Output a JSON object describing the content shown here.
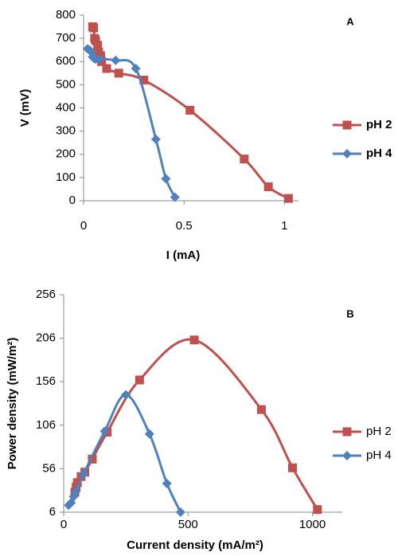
{
  "chart_data": [
    {
      "type": "line",
      "panel_label": "A",
      "x_label": "I (mA)",
      "y_label": "V (mV)",
      "xlim": [
        0,
        1.07
      ],
      "ylim": [
        0,
        800
      ],
      "xticks": [
        0,
        0.5,
        1
      ],
      "yticks": [
        0,
        100,
        200,
        300,
        400,
        500,
        600,
        700,
        800
      ],
      "legend_position": "right",
      "legend_bold": true,
      "series": [
        {
          "name": "pH 2",
          "color": "#c0504d",
          "marker": "square",
          "x": [
            0.045,
            0.05,
            0.055,
            0.06,
            0.07,
            0.075,
            0.085,
            0.09,
            0.115,
            0.175,
            0.3,
            0.53,
            0.8,
            0.92,
            1.02
          ],
          "values": [
            750,
            745,
            700,
            690,
            670,
            640,
            625,
            600,
            570,
            550,
            520,
            390,
            180,
            60,
            10
          ]
        },
        {
          "name": "pH 4",
          "color": "#4f81bd",
          "marker": "diamond",
          "x": [
            0.02,
            0.03,
            0.04,
            0.045,
            0.05,
            0.06,
            0.08,
            0.16,
            0.26,
            0.36,
            0.41,
            0.455
          ],
          "values": [
            655,
            650,
            640,
            620,
            615,
            610,
            610,
            605,
            570,
            265,
            95,
            15
          ]
        }
      ]
    },
    {
      "type": "line",
      "panel_label": "B",
      "x_label": "Current density (mA/m²)",
      "y_label": "Power density (mW/m²)",
      "xlim": [
        0,
        1120
      ],
      "ylim": [
        6,
        256
      ],
      "xticks": [
        0,
        500,
        1000
      ],
      "yticks": [
        6,
        56,
        106,
        156,
        206,
        256
      ],
      "legend_position": "right",
      "legend_bold": false,
      "series": [
        {
          "name": "pH 2",
          "color": "#c0504d",
          "marker": "square",
          "x": [
            45,
            50,
            55,
            70,
            85,
            115,
            175,
            305,
            525,
            795,
            920,
            1020
          ],
          "values": [
            29,
            35,
            40,
            47,
            52,
            67,
            98,
            158,
            204,
            124,
            57,
            9
          ]
        },
        {
          "name": "pH 4",
          "color": "#4f81bd",
          "marker": "diamond",
          "x": [
            20,
            30,
            40,
            50,
            80,
            165,
            250,
            345,
            415,
            470
          ],
          "values": [
            14,
            17,
            24,
            30,
            50,
            99,
            141,
            96,
            39,
            6
          ]
        }
      ]
    }
  ]
}
